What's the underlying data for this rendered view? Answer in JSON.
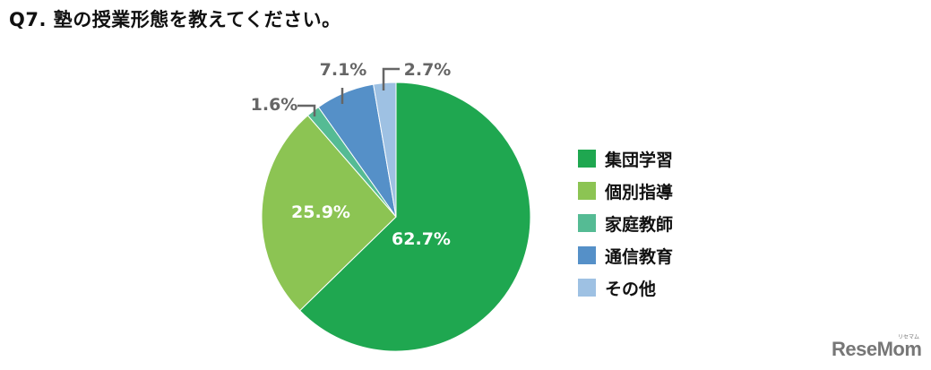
{
  "title": "Q7. 塾の授業形態を教えてください。",
  "logo": {
    "text": "ReseMom",
    "sub": "リセマム"
  },
  "legend": [
    {
      "label": "集団学習",
      "color": "#1fa750"
    },
    {
      "label": "個別指導",
      "color": "#8cc453"
    },
    {
      "label": "家庭教師",
      "color": "#55bb94"
    },
    {
      "label": "通信教育",
      "color": "#5590c8"
    },
    {
      "label": "その他",
      "color": "#9ec1e3"
    }
  ],
  "labels": {
    "s0": "62.7%",
    "s1": "25.9%",
    "s2": "1.6%",
    "s3": "7.1%",
    "s4": "2.7%"
  },
  "chart_data": {
    "type": "pie",
    "title": "Q7. 塾の授業形態を教えてください。",
    "categories": [
      "集団学習",
      "個別指導",
      "家庭教師",
      "通信教育",
      "その他"
    ],
    "values": [
      62.7,
      25.9,
      1.6,
      7.1,
      2.7
    ],
    "unit": "%",
    "colors": [
      "#1fa750",
      "#8cc453",
      "#55bb94",
      "#5590c8",
      "#9ec1e3"
    ],
    "start_angle": "12 o'clock",
    "direction": "clockwise",
    "legend_position": "right"
  }
}
